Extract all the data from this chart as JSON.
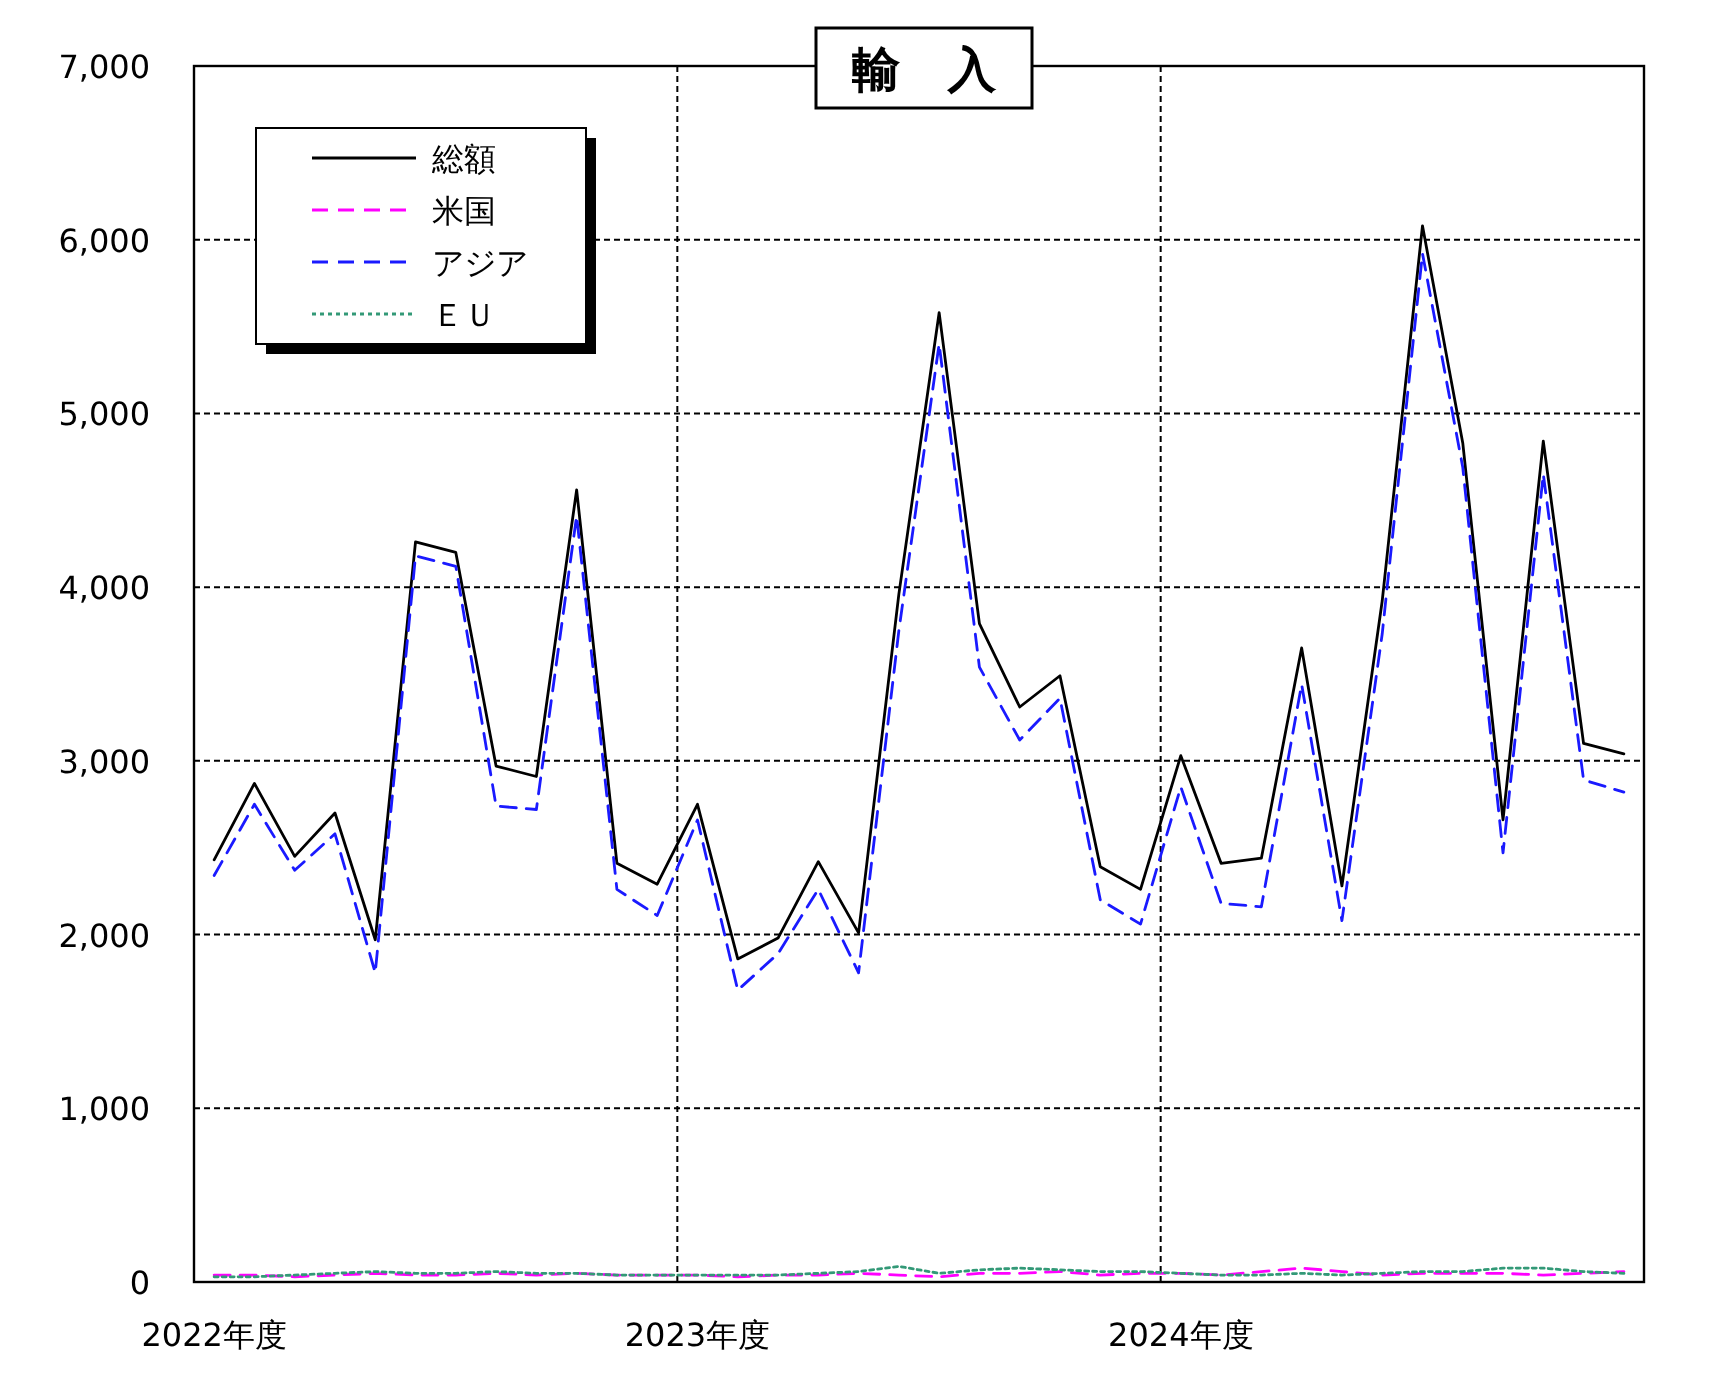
{
  "chart_data": {
    "type": "line",
    "title": "輸　入",
    "categories": [
      "2022年度",
      null,
      null,
      null,
      null,
      null,
      null,
      null,
      null,
      null,
      null,
      null,
      "2023年度",
      null,
      null,
      null,
      null,
      null,
      null,
      null,
      null,
      null,
      null,
      null,
      "2024年度",
      null,
      null,
      null,
      null,
      null,
      null,
      null,
      null,
      null,
      null,
      null
    ],
    "series": [
      {
        "name": "総額",
        "color": "#000000",
        "line_style": "solid",
        "values": [
          2430,
          2870,
          2450,
          2700,
          1970,
          4260,
          4200,
          2970,
          2910,
          4560,
          2410,
          2290,
          2750,
          1860,
          1980,
          2420,
          2010,
          3960,
          5580,
          3790,
          3310,
          3490,
          2390,
          2260,
          3030,
          2410,
          2440,
          3650,
          2280,
          3920,
          6080,
          4830,
          2660,
          4840,
          3100,
          3040
        ]
      },
      {
        "name": "米国",
        "color": "#ff00ff",
        "line_style": "dashed",
        "values": [
          40,
          40,
          30,
          40,
          50,
          40,
          40,
          50,
          40,
          50,
          40,
          40,
          40,
          30,
          40,
          40,
          50,
          40,
          30,
          50,
          50,
          60,
          40,
          50,
          50,
          40,
          60,
          80,
          60,
          40,
          50,
          50,
          50,
          40,
          50,
          60
        ]
      },
      {
        "name": "アジア",
        "color": "#1a1aff",
        "line_style": "dashed",
        "values": [
          2340,
          2750,
          2370,
          2580,
          1780,
          4180,
          4120,
          2740,
          2720,
          4410,
          2260,
          2110,
          2660,
          1680,
          1890,
          2260,
          1780,
          3750,
          5400,
          3540,
          3120,
          3360,
          2200,
          2060,
          2850,
          2180,
          2160,
          3440,
          2080,
          3730,
          5920,
          4690,
          2470,
          4650,
          2890,
          2820
        ]
      },
      {
        "name": "ＥＵ",
        "color": "#339977",
        "line_style": "dotted",
        "values": [
          30,
          30,
          40,
          50,
          60,
          50,
          50,
          60,
          50,
          50,
          40,
          40,
          40,
          40,
          40,
          50,
          60,
          90,
          50,
          70,
          80,
          70,
          60,
          60,
          50,
          40,
          40,
          50,
          40,
          50,
          60,
          60,
          80,
          80,
          60,
          50
        ]
      }
    ],
    "ylim": [
      0,
      7000
    ],
    "yticks": [
      {
        "value": 0,
        "label": "0"
      },
      {
        "value": 1000,
        "label": "1,000"
      },
      {
        "value": 2000,
        "label": "2,000"
      },
      {
        "value": 3000,
        "label": "3,000"
      },
      {
        "value": 4000,
        "label": "4,000"
      },
      {
        "value": 5000,
        "label": "5,000"
      },
      {
        "value": 6000,
        "label": "6,000"
      },
      {
        "value": 7000,
        "label": "7,000"
      }
    ],
    "grid": true,
    "legend": "top left"
  }
}
